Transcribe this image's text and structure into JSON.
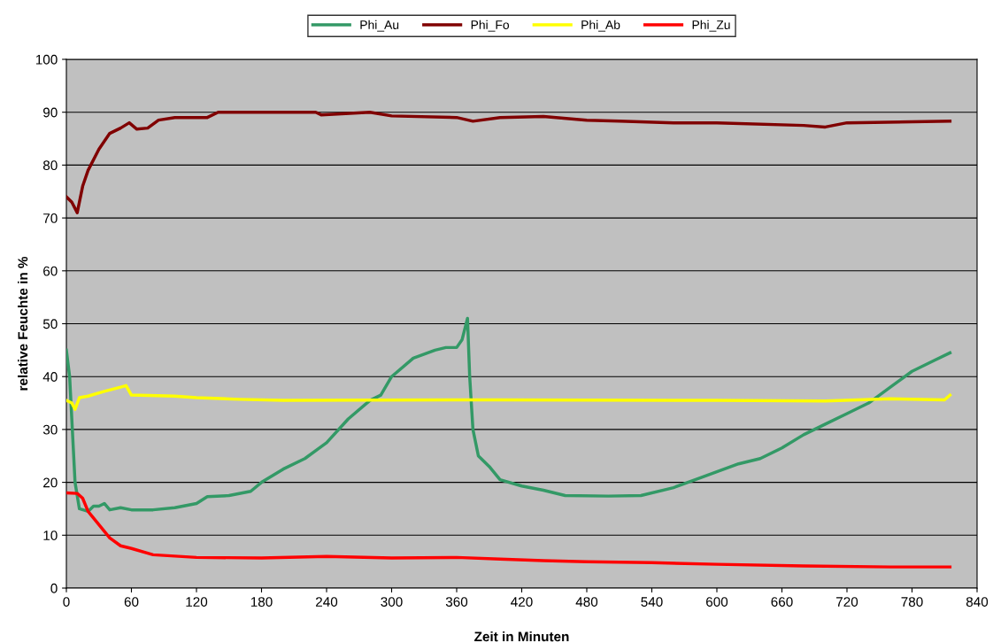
{
  "chart_data": {
    "type": "line",
    "xlabel": "Zeit in Minuten",
    "ylabel": "relative Feuchte in %",
    "xlim": [
      0,
      840
    ],
    "xticks": [
      0,
      60,
      120,
      180,
      240,
      300,
      360,
      420,
      480,
      540,
      600,
      660,
      720,
      780,
      840
    ],
    "ylim": [
      0,
      100
    ],
    "yticks": [
      0,
      10,
      20,
      30,
      40,
      50,
      60,
      70,
      80,
      90,
      100
    ],
    "grid": "y",
    "legend": "top",
    "marker": "none",
    "line_style": "solid",
    "series": [
      {
        "name": "Phi_Au",
        "color": "#339966",
        "x": [
          0,
          3,
          8,
          12,
          20,
          25,
          30,
          35,
          40,
          50,
          60,
          80,
          100,
          120,
          130,
          150,
          170,
          180,
          200,
          220,
          240,
          260,
          280,
          290,
          300,
          320,
          340,
          350,
          360,
          365,
          370,
          372,
          375,
          380,
          390,
          400,
          420,
          440,
          460,
          500,
          530,
          560,
          580,
          600,
          620,
          640,
          660,
          680,
          700,
          720,
          740,
          760,
          780,
          800,
          815
        ],
        "values": [
          45,
          40,
          20,
          15,
          14.5,
          15.5,
          15.5,
          16,
          14.8,
          15.2,
          14.8,
          14.8,
          15.2,
          16,
          17.3,
          17.5,
          18.3,
          20,
          22.5,
          24.5,
          27.5,
          32,
          35.5,
          36.5,
          40,
          43.5,
          45,
          45.5,
          45.5,
          47,
          51,
          40,
          30,
          25,
          23,
          20.5,
          19.3,
          18.5,
          17.5,
          17.4,
          17.5,
          19,
          20.5,
          22,
          23.5,
          24.5,
          26.5,
          29,
          31,
          33,
          35,
          38,
          41,
          43,
          44.5
        ]
      },
      {
        "name": "Phi_Fo",
        "color": "#800000",
        "x": [
          0,
          5,
          10,
          15,
          20,
          30,
          40,
          50,
          58,
          65,
          75,
          85,
          100,
          130,
          140,
          180,
          230,
          235,
          280,
          300,
          360,
          375,
          400,
          440,
          480,
          510,
          560,
          600,
          680,
          700,
          720,
          780,
          815
        ],
        "values": [
          74,
          73,
          71,
          76,
          79,
          83,
          86,
          87,
          88,
          86.8,
          87,
          88.5,
          89,
          89,
          90,
          90,
          90,
          89.5,
          90,
          89.3,
          89,
          88.3,
          89,
          89.2,
          88.5,
          88.3,
          88,
          88,
          87.5,
          87.2,
          88,
          88.2,
          88.3
        ]
      },
      {
        "name": "Phi_Ab",
        "color": "#ffff00",
        "x": [
          0,
          5,
          8,
          12,
          20,
          35,
          50,
          55,
          60,
          100,
          120,
          160,
          200,
          400,
          600,
          700,
          760,
          810,
          815
        ],
        "values": [
          35.5,
          35,
          33.8,
          36,
          36.3,
          37.2,
          38,
          38.3,
          36.5,
          36.3,
          36,
          35.7,
          35.5,
          35.6,
          35.5,
          35.4,
          35.8,
          35.6,
          36.5
        ]
      },
      {
        "name": "Phi_Zu",
        "color": "#ff0000",
        "x": [
          0,
          10,
          15,
          20,
          30,
          40,
          50,
          60,
          80,
          120,
          180,
          240,
          300,
          360,
          400,
          440,
          480,
          540,
          600,
          680,
          760,
          815
        ],
        "values": [
          18,
          17.9,
          17,
          14.5,
          12,
          9.5,
          8,
          7.5,
          6.3,
          5.8,
          5.7,
          6,
          5.7,
          5.8,
          5.5,
          5.2,
          5,
          4.8,
          4.5,
          4.2,
          4,
          4
        ]
      }
    ]
  }
}
